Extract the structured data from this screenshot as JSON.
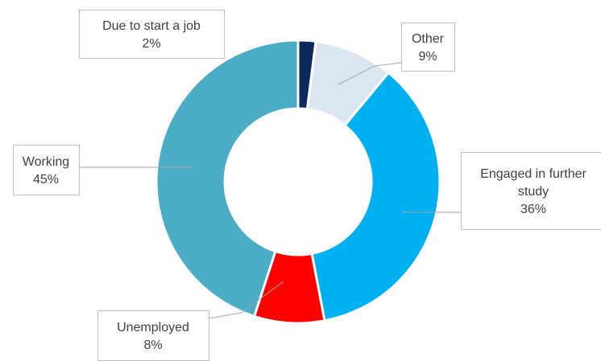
{
  "chart_data": {
    "type": "pie",
    "style": "donut",
    "start": "12 o'clock, clockwise",
    "slices": [
      {
        "label": "Due to start a job",
        "value": 2,
        "value_label": "2%",
        "color": "#0b2a5b"
      },
      {
        "label": "Other",
        "value": 9,
        "value_label": "9%",
        "color": "#dce6f1"
      },
      {
        "label": "Engaged in further study",
        "value": 36,
        "value_label": "36%",
        "color": "#00b0f0"
      },
      {
        "label": "Unemployed",
        "value": 8,
        "value_label": "8%",
        "color": "#ff0000"
      },
      {
        "label": "Working",
        "value": 45,
        "value_label": "45%",
        "color": "#4bacc6"
      }
    ]
  }
}
